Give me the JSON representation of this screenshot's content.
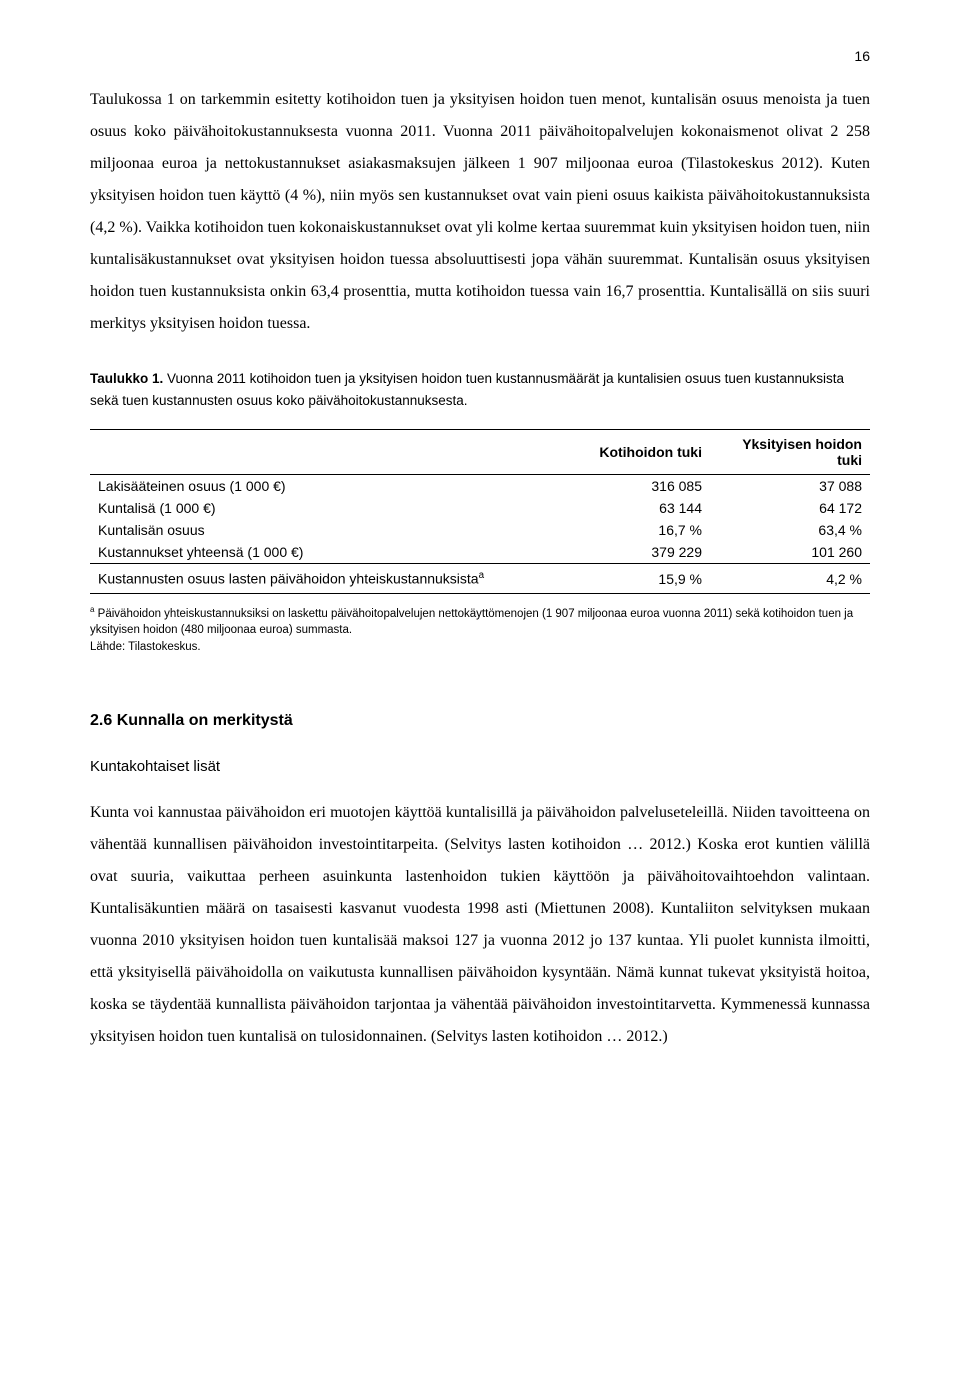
{
  "page_number": "16",
  "paragraph1": "Taulukossa 1 on tarkemmin esitetty kotihoidon tuen ja yksityisen hoidon tuen menot, kuntalisän osuus menoista ja tuen osuus koko päivähoitokustannuksesta vuonna 2011. Vuonna 2011 päivähoitopalvelujen kokonaismenot olivat 2 258 miljoonaa euroa ja nettokustannukset asiakasmaksujen jälkeen 1 907 miljoonaa euroa (Tilastokeskus 2012). Kuten yksityisen hoidon tuen käyttö (4 %), niin myös sen kustannukset ovat vain pieni osuus kaikista päivähoitokustannuksista (4,2 %). Vaikka kotihoidon tuen kokonaiskustannukset ovat yli kolme kertaa suuremmat kuin yksityisen hoidon tuen, niin kuntalisäkustannukset ovat yksityisen hoidon tuessa absoluuttisesti jopa vähän suuremmat. Kuntalisän osuus yksityisen hoidon tuen kustannuksista onkin 63,4 prosenttia, mutta kotihoidon tuessa vain 16,7 prosenttia. Kuntalisällä on siis suuri merkitys yksityisen hoidon tuessa.",
  "table_caption_bold": "Taulukko 1.",
  "table_caption_rest": " Vuonna 2011 kotihoidon tuen ja yksityisen hoidon tuen kustannusmäärät ja kuntalisien osuus tuen kustannuksista sekä tuen kustannusten osuus koko päivähoitokustannuksesta.",
  "table": {
    "columns": [
      "",
      "Kotihoidon tuki",
      "Yksityisen hoidon tuki"
    ],
    "rows": [
      [
        "Lakisääteinen osuus (1 000 €)",
        "316 085",
        "37 088"
      ],
      [
        "Kuntalisä (1 000 €)",
        "63 144",
        "64 172"
      ],
      [
        "Kuntalisän osuus",
        "16,7 %",
        "63,4 %"
      ],
      [
        "Kustannukset yhteensä (1 000 €)",
        "379 229",
        "101 260"
      ]
    ],
    "footer_label": "Kustannusten osuus lasten päivähoidon yhteiskustannuksista",
    "footer_sup": "a",
    "footer_vals": [
      "15,9 %",
      "4,2 %"
    ]
  },
  "footnote_sup": "a",
  "footnote_text": " Päivähoidon yhteiskustannuksiksi on laskettu päivähoitopalvelujen nettokäyttömenojen (1 907 miljoonaa euroa vuonna 2011) sekä kotihoidon tuen ja yksityisen hoidon (480 miljoonaa euroa) summasta.",
  "footnote_source": "Lähde: Tilastokeskus.",
  "section_heading": "2.6 Kunnalla on merkitystä",
  "sub_heading": "Kuntakohtaiset lisät",
  "paragraph2": "Kunta voi kannustaa päivähoidon eri muotojen käyttöä kuntalisillä ja päivähoidon palveluseteleillä. Niiden tavoitteena on vähentää kunnallisen päivähoidon investointitarpeita. (Selvitys lasten kotihoidon … 2012.) Koska erot kuntien välillä ovat suuria, vaikuttaa perheen asuinkunta lastenhoidon tukien käyttöön ja päivähoitovaihtoehdon valintaan. Kuntalisäkuntien määrä on tasaisesti kasvanut vuodesta 1998 asti (Miettunen 2008). Kuntaliiton selvityksen mukaan vuonna 2010 yksityisen hoidon tuen kuntalisää maksoi 127 ja vuonna 2012 jo 137 kuntaa. Yli puolet kunnista ilmoitti, että yksityisellä päivähoidolla on vaikutusta kunnallisen päivähoidon kysyntään. Nämä kunnat tukevat yksityistä hoitoa, koska se täydentää kunnallista päivähoidon tarjontaa ja vähentää päivähoidon investointitarvetta. Kymmenessä kunnassa yksityisen hoidon tuen kuntalisä on tulosidonnainen. (Selvitys lasten kotihoidon … 2012.)"
}
